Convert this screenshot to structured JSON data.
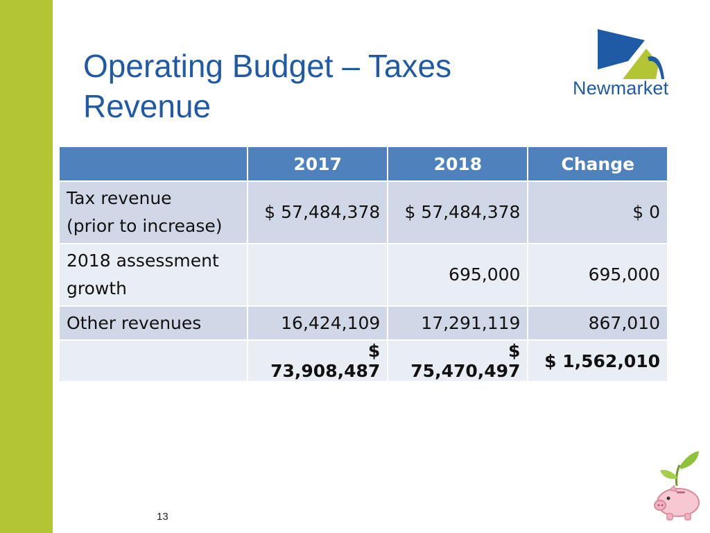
{
  "slide": {
    "title_lines": [
      "Operating Budget – Taxes",
      "Revenue"
    ],
    "logo_text": "Newmarket",
    "page_number": "13",
    "colors": {
      "accent_bar": "#b3c535",
      "title": "#1f5aa6",
      "header": "#4f81bd"
    }
  },
  "table": {
    "headers": [
      "",
      "2017",
      "2018",
      "Change"
    ],
    "rows": [
      {
        "label_lines": [
          "Tax revenue",
          "(prior to increase)"
        ],
        "y2017": "$ 57,484,378",
        "y2018": "$ 57,484,378",
        "change": "$ 0"
      },
      {
        "label_lines": [
          "2018 assessment",
          "growth"
        ],
        "y2017": "",
        "y2018": "695,000",
        "change": "695,000"
      },
      {
        "label_lines": [
          "Other revenues"
        ],
        "y2017": "16,424,109",
        "y2018": "17,291,119",
        "change": "867,010"
      },
      {
        "label_lines": [],
        "y2017": "$ 73,908,487",
        "y2018": "$ 75,470,497",
        "change": "$ 1,562,010"
      }
    ]
  }
}
